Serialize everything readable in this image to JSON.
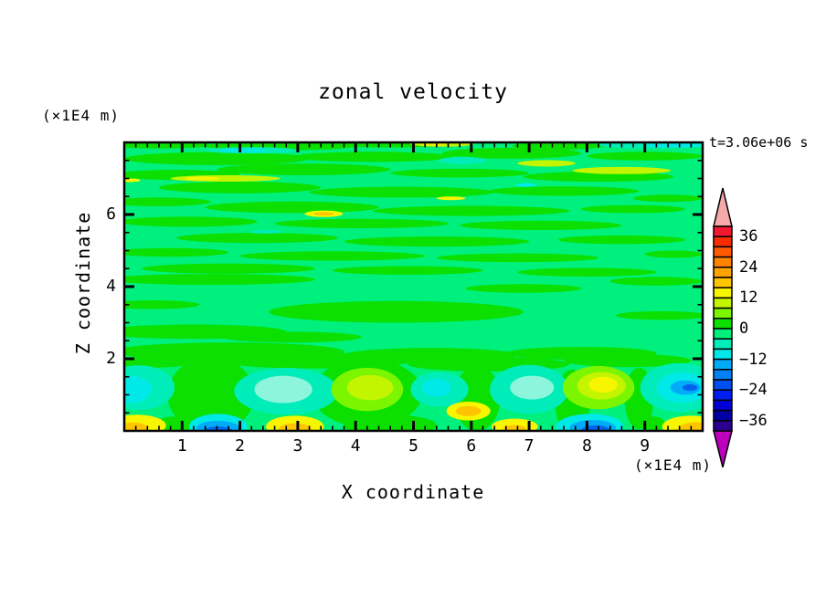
{
  "title": "zonal velocity",
  "time_label": "t=3.06e+06 s",
  "axes": {
    "x_label": "X coordinate",
    "x_unit": "(×1E4 m)",
    "y_label": "Z coordinate",
    "y_unit": "(×1E4 m)",
    "x_ticks": [
      "1",
      "2",
      "3",
      "4",
      "5",
      "6",
      "7",
      "8",
      "9"
    ],
    "y_ticks": [
      "2",
      "4",
      "6"
    ]
  },
  "colorbar": {
    "labels": [
      "36",
      "24",
      "12",
      "0",
      "−12",
      "−24",
      "−36"
    ],
    "over_color": "#F5A9A9",
    "under_color": "#BC00BC",
    "colors": [
      "#F21830",
      "#FA2D00",
      "#FF5A00",
      "#FF8200",
      "#FFA300",
      "#FFC400",
      "#F7F500",
      "#C3F500",
      "#7CF500",
      "#0BE000",
      "#00EF7B",
      "#00EDB9",
      "#00E9E9",
      "#00ACF7",
      "#0082F5",
      "#0050F0",
      "#001EF0",
      "#0000D7",
      "#0000A5",
      "#2B0090"
    ]
  },
  "chart_data": {
    "type": "filled-contour",
    "title": "zonal velocity",
    "xlabel": "X coordinate (×1E4 m)",
    "ylabel": "Z coordinate (×1E4 m)",
    "xlim": [
      0,
      10
    ],
    "ylim": [
      0,
      8
    ],
    "time": "t=3.06e+06 s",
    "contour_interval": 4,
    "labeled_levels": [
      36,
      24,
      12,
      0,
      -12,
      -24,
      -36
    ],
    "level_range": [
      -40,
      40
    ],
    "grid": false,
    "field_background": "#00F07D",
    "palette": {
      "S": "#00F07D",
      "G": "#0BE000",
      "T": "#00EDB9",
      "C": "#00E9E9",
      "PC": "#8CF5DC",
      "Y": "#F7F500",
      "GY": "#C3F500",
      "CH": "#7CF500",
      "GO": "#FFC400",
      "SK": "#00ACF7",
      "RB": "#0063F0"
    },
    "streaks": [
      [
        "G",
        1.6,
        7.55,
        1.6,
        0.18
      ],
      [
        "G",
        4.3,
        7.6,
        1.4,
        0.14
      ],
      [
        "G",
        6.7,
        7.7,
        1.2,
        0.15
      ],
      [
        "G",
        9.0,
        7.62,
        1.0,
        0.12
      ],
      [
        "G",
        0.6,
        7.93,
        0.9,
        0.1
      ],
      [
        "G",
        2.7,
        7.9,
        1.3,
        0.12
      ],
      [
        "G",
        4.6,
        7.95,
        1.0,
        0.09
      ],
      [
        "G",
        7.5,
        7.9,
        0.8,
        0.1
      ],
      [
        "G",
        0.9,
        7.1,
        1.1,
        0.14
      ],
      [
        "G",
        3.1,
        7.25,
        1.5,
        0.16
      ],
      [
        "G",
        5.8,
        7.15,
        1.2,
        0.12
      ],
      [
        "G",
        8.2,
        7.05,
        1.3,
        0.14
      ],
      [
        "G",
        2.0,
        6.75,
        1.4,
        0.16
      ],
      [
        "G",
        4.8,
        6.62,
        1.6,
        0.15
      ],
      [
        "G",
        7.6,
        6.65,
        1.3,
        0.13
      ],
      [
        "G",
        0.6,
        6.35,
        0.9,
        0.12
      ],
      [
        "G",
        2.9,
        6.2,
        1.5,
        0.16
      ],
      [
        "G",
        6.0,
        6.1,
        1.7,
        0.14
      ],
      [
        "G",
        8.8,
        6.15,
        0.9,
        0.11
      ],
      [
        "G",
        9.4,
        6.45,
        0.6,
        0.1
      ],
      [
        "G",
        1.1,
        5.8,
        1.2,
        0.14
      ],
      [
        "G",
        4.1,
        5.75,
        1.5,
        0.13
      ],
      [
        "G",
        7.2,
        5.7,
        1.4,
        0.13
      ],
      [
        "G",
        2.3,
        5.35,
        1.4,
        0.14
      ],
      [
        "G",
        5.4,
        5.25,
        1.6,
        0.14
      ],
      [
        "G",
        8.6,
        5.3,
        1.1,
        0.12
      ],
      [
        "G",
        0.8,
        4.95,
        1.0,
        0.12
      ],
      [
        "G",
        3.6,
        4.85,
        1.6,
        0.13
      ],
      [
        "G",
        6.8,
        4.8,
        1.4,
        0.12
      ],
      [
        "G",
        9.5,
        4.9,
        0.5,
        0.1
      ],
      [
        "G",
        1.8,
        4.5,
        1.5,
        0.14
      ],
      [
        "G",
        4.9,
        4.45,
        1.3,
        0.12
      ],
      [
        "G",
        8.0,
        4.4,
        1.2,
        0.12
      ],
      [
        "G",
        1.5,
        4.2,
        1.8,
        0.15
      ],
      [
        "G",
        9.2,
        4.15,
        0.8,
        0.12
      ],
      [
        "G",
        6.9,
        3.95,
        1.0,
        0.12
      ],
      [
        "G",
        4.7,
        3.3,
        2.2,
        0.3
      ],
      [
        "G",
        0.5,
        3.5,
        0.8,
        0.12
      ],
      [
        "G",
        9.3,
        3.2,
        0.8,
        0.12
      ],
      [
        "G",
        1.2,
        2.75,
        1.6,
        0.2
      ],
      [
        "G",
        2.9,
        2.6,
        1.2,
        0.15
      ],
      [
        "G",
        1.8,
        2.2,
        2.0,
        0.25
      ],
      [
        "G",
        5.3,
        2.1,
        1.5,
        0.2
      ],
      [
        "G",
        7.9,
        2.15,
        1.3,
        0.18
      ],
      [
        "G",
        3.3,
        1.95,
        1.7,
        0.22
      ],
      [
        "G",
        6.3,
        1.85,
        1.4,
        0.2
      ],
      [
        "G",
        8.7,
        1.95,
        1.1,
        0.18
      ],
      [
        "G",
        0.4,
        1.9,
        0.8,
        0.15
      ],
      [
        "G",
        1.5,
        1.0,
        0.75,
        1.05
      ],
      [
        "G",
        4.2,
        1.05,
        0.95,
        0.95
      ],
      [
        "G",
        6.1,
        0.9,
        0.4,
        0.9
      ],
      [
        "G",
        7.75,
        0.8,
        0.3,
        0.9
      ],
      [
        "G",
        8.9,
        0.9,
        0.25,
        0.85
      ],
      [
        "G",
        0.85,
        0.15,
        0.3,
        0.25
      ],
      [
        "G",
        4.6,
        0.15,
        0.8,
        0.3
      ],
      [
        "G",
        9.15,
        0.2,
        0.2,
        0.2
      ],
      [
        "T",
        2.2,
        7.78,
        0.8,
        0.09
      ],
      [
        "C",
        2.05,
        7.78,
        0.4,
        0.05
      ],
      [
        "T",
        9.2,
        7.93,
        1.0,
        0.1
      ],
      [
        "C",
        9.5,
        7.92,
        0.5,
        0.05
      ],
      [
        "GY",
        5.5,
        7.96,
        0.55,
        0.08
      ],
      [
        "Y",
        5.35,
        7.96,
        0.2,
        0.05
      ],
      [
        "GY",
        1.75,
        7.0,
        0.95,
        0.09
      ],
      [
        "Y",
        1.35,
        7.0,
        0.3,
        0.05
      ],
      [
        "Y",
        0.1,
        6.95,
        0.18,
        0.05
      ],
      [
        "GY",
        7.3,
        7.42,
        0.5,
        0.09
      ],
      [
        "GY",
        8.6,
        7.22,
        0.85,
        0.1
      ],
      [
        "T",
        5.85,
        7.5,
        0.42,
        0.1
      ],
      [
        "C",
        6.95,
        6.82,
        0.18,
        0.05
      ],
      [
        "Y",
        5.65,
        6.45,
        0.25,
        0.05
      ],
      [
        "Y",
        3.45,
        6.02,
        0.33,
        0.09
      ],
      [
        "GO",
        3.45,
        6.02,
        0.18,
        0.05
      ],
      [
        "T",
        2.45,
        5.52,
        0.28,
        0.05
      ]
    ],
    "blobs": [
      [
        "T",
        0.25,
        1.2,
        0.62,
        0.62
      ],
      [
        "C",
        0.12,
        1.15,
        0.35,
        0.38
      ],
      [
        "Y",
        0.22,
        0.15,
        0.5,
        0.3
      ],
      [
        "GO",
        0.15,
        0.08,
        0.25,
        0.15
      ],
      [
        "T",
        2.8,
        1.1,
        0.9,
        0.65
      ],
      [
        "PC",
        2.75,
        1.15,
        0.5,
        0.38
      ],
      [
        "C",
        1.62,
        0.12,
        0.5,
        0.35
      ],
      [
        "SK",
        1.62,
        0.06,
        0.38,
        0.22
      ],
      [
        "RB",
        1.62,
        0.0,
        0.25,
        0.12
      ],
      [
        "Y",
        2.95,
        0.12,
        0.5,
        0.3
      ],
      [
        "GO",
        2.95,
        0.06,
        0.28,
        0.15
      ],
      [
        "CH",
        4.2,
        1.15,
        0.62,
        0.6
      ],
      [
        "GY",
        4.25,
        1.2,
        0.4,
        0.35
      ],
      [
        "T",
        5.45,
        1.15,
        0.5,
        0.48
      ],
      [
        "C",
        5.4,
        1.2,
        0.25,
        0.25
      ],
      [
        "Y",
        5.95,
        0.55,
        0.38,
        0.26
      ],
      [
        "GO",
        5.95,
        0.55,
        0.22,
        0.14
      ],
      [
        "T",
        7.0,
        1.15,
        0.68,
        0.68
      ],
      [
        "PC",
        7.05,
        1.2,
        0.38,
        0.33
      ],
      [
        "Y",
        6.75,
        0.12,
        0.4,
        0.22
      ],
      [
        "GO",
        6.75,
        0.06,
        0.2,
        0.1
      ],
      [
        "CH",
        8.2,
        1.2,
        0.62,
        0.6
      ],
      [
        "GY",
        8.25,
        1.25,
        0.42,
        0.38
      ],
      [
        "Y",
        8.28,
        1.28,
        0.25,
        0.22
      ],
      [
        "C",
        8.05,
        0.12,
        0.58,
        0.35
      ],
      [
        "SK",
        8.1,
        0.08,
        0.4,
        0.22
      ],
      [
        "RB",
        8.15,
        0.03,
        0.24,
        0.12
      ],
      [
        "T",
        9.6,
        1.2,
        0.68,
        0.68
      ],
      [
        "C",
        9.65,
        1.2,
        0.45,
        0.42
      ],
      [
        "SK",
        9.7,
        1.2,
        0.26,
        0.2
      ],
      [
        "RB",
        9.78,
        1.2,
        0.13,
        0.09
      ],
      [
        "Y",
        9.8,
        0.12,
        0.5,
        0.3
      ],
      [
        "GO",
        9.88,
        0.08,
        0.28,
        0.16
      ]
    ]
  }
}
